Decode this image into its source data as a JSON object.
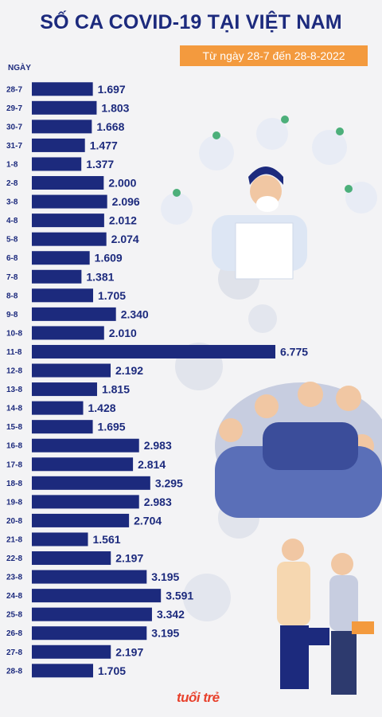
{
  "header": {
    "title": "SỐ CA COVID-19 TẠI VIỆT NAM",
    "subtitle": "Từ ngày 28-7 đến 28-8-2022"
  },
  "axis": {
    "y_title": "NGÀY"
  },
  "brand": {
    "logo_text": "tuổi trẻ"
  },
  "colors": {
    "bar": "#1c2a7d",
    "title": "#1c2a7d",
    "subtitle_bg": "#f39a3e"
  },
  "chart_data": {
    "type": "bar",
    "orientation": "horizontal",
    "title": "SỐ CA COVID-19 TẠI VIỆT NAM",
    "subtitle": "Từ ngày 28-7 đến 28-8-2022",
    "ylabel": "NGÀY",
    "categories": [
      "28-7",
      "29-7",
      "30-7",
      "31-7",
      "1-8",
      "2-8",
      "3-8",
      "4-8",
      "5-8",
      "6-8",
      "7-8",
      "8-8",
      "9-8",
      "10-8",
      "11-8",
      "12-8",
      "13-8",
      "14-8",
      "15-8",
      "16-8",
      "17-8",
      "18-8",
      "19-8",
      "20-8",
      "21-8",
      "22-8",
      "23-8",
      "24-8",
      "25-8",
      "26-8",
      "27-8",
      "28-8"
    ],
    "values": [
      1697,
      1803,
      1668,
      1477,
      1377,
      2000,
      2096,
      2012,
      2074,
      1609,
      1381,
      1705,
      2340,
      2010,
      6775,
      2192,
      1815,
      1428,
      1695,
      2983,
      2814,
      3295,
      2983,
      2704,
      1561,
      2197,
      3195,
      3591,
      3342,
      3195,
      2197,
      1705
    ],
    "value_labels": [
      "1.697",
      "1.803",
      "1.668",
      "1.477",
      "1.377",
      "2.000",
      "2.096",
      "2.012",
      "2.074",
      "1.609",
      "1.381",
      "1.705",
      "2.340",
      "2.010",
      "6.775",
      "2.192",
      "1.815",
      "1.428",
      "1.695",
      "2.983",
      "2.814",
      "3.295",
      "2.983",
      "2.704",
      "1.561",
      "2.197",
      "3.195",
      "3.591",
      "3.342",
      "3.195",
      "2.197",
      "1.705"
    ],
    "xlim": [
      0,
      7000
    ],
    "grid": false,
    "legend": "none"
  }
}
